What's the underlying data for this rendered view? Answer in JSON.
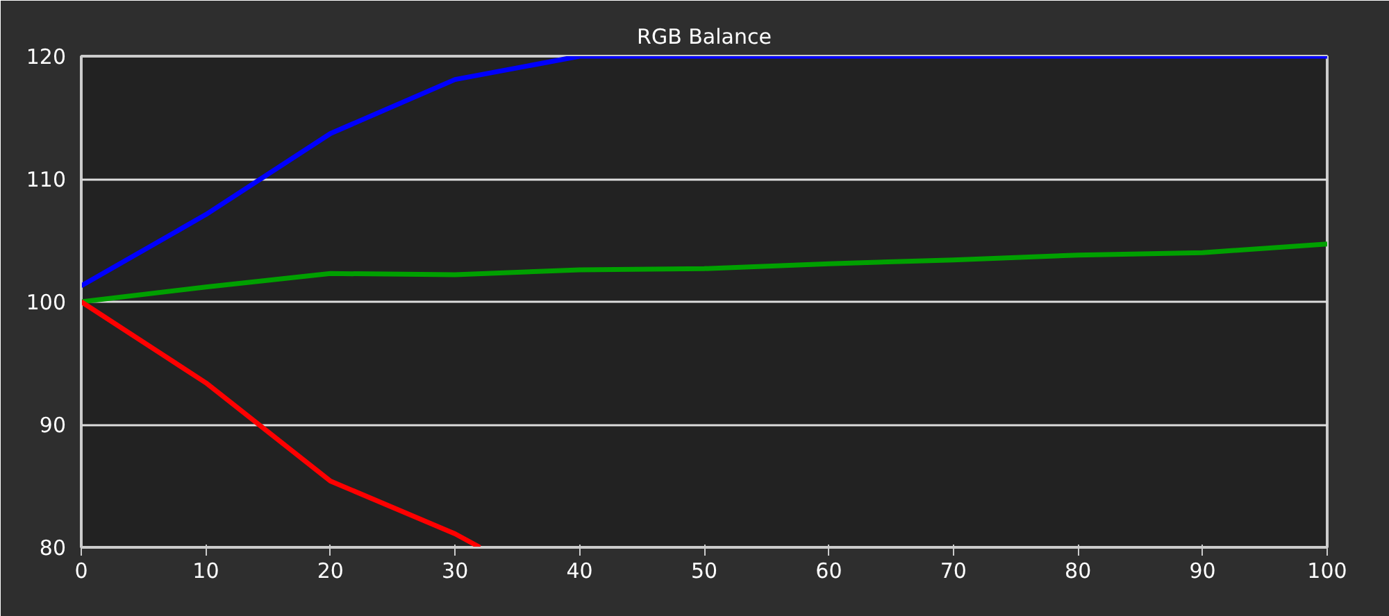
{
  "chart_data": {
    "type": "line",
    "title": "RGB Balance",
    "xlim": [
      0,
      100
    ],
    "xticks": [
      0,
      10,
      20,
      30,
      40,
      50,
      60,
      70,
      80,
      90,
      100
    ],
    "ylim": [
      80,
      120
    ],
    "yticks": [
      80,
      90,
      100,
      110,
      120
    ],
    "grid": "y",
    "series": [
      {
        "color": "#0000ff",
        "x": [
          0,
          10,
          20,
          30,
          40,
          50,
          60,
          70,
          80,
          90,
          100
        ],
        "values": [
          101.3,
          107.1,
          113.7,
          118.1,
          120,
          120,
          120,
          120,
          120,
          120,
          120
        ]
      },
      {
        "color": "#00a000",
        "x": [
          0,
          10,
          20,
          30,
          40,
          50,
          60,
          70,
          80,
          90,
          100
        ],
        "values": [
          100,
          101.2,
          102.3,
          102.2,
          102.6,
          102.7,
          103.1,
          103.4,
          103.8,
          104.0,
          104.7
        ]
      },
      {
        "color": "#ff0000",
        "x": [
          0,
          10,
          20,
          30,
          32
        ],
        "values": [
          100,
          93.4,
          85.4,
          81.1,
          80
        ]
      }
    ]
  }
}
